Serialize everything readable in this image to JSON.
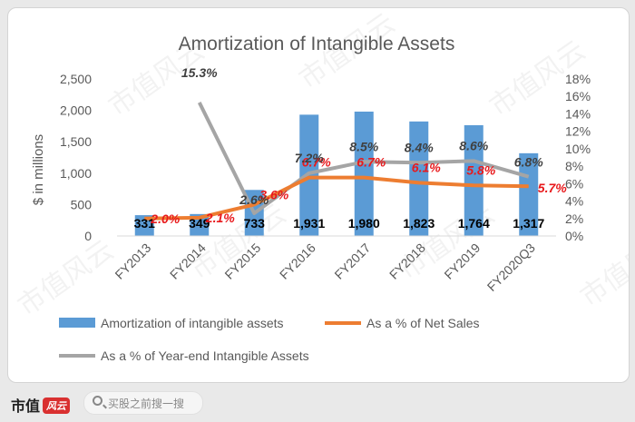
{
  "watermark": {
    "text": "市值风云"
  },
  "footer": {
    "brand": "市值",
    "brand_badge": "风云",
    "search_placeholder": "买股之前搜一搜"
  },
  "colors": {
    "bar": "#5b9bd5",
    "net_sales_line": "#ed7d31",
    "intangible_line": "#a5a5a5",
    "net_sales_label": "#e8191c",
    "axis_text": "#595959"
  },
  "chart_data": {
    "type": "bar",
    "title": "Amortization of Intangible Assets",
    "ylabel": "$ in millions",
    "categories": [
      "FY2013",
      "FY2014",
      "FY2015",
      "FY2016",
      "FY2017",
      "FY2018",
      "FY2019",
      "FY2020Q3"
    ],
    "ylim": [
      0,
      2500
    ],
    "yticks": [
      "0",
      "500",
      "1,000",
      "1,500",
      "2,000",
      "2,500"
    ],
    "y2lim": [
      0,
      18
    ],
    "y2ticks": [
      "0%",
      "2%",
      "4%",
      "6%",
      "8%",
      "10%",
      "12%",
      "14%",
      "16%",
      "18%"
    ],
    "series": [
      {
        "name": "Amortization of intangible assets",
        "kind": "bar",
        "axis": "left",
        "color": "#5b9bd5",
        "values": [
          331,
          349,
          733,
          1931,
          1980,
          1823,
          1764,
          1317
        ],
        "labels": [
          "331",
          "349",
          "733",
          "1,931",
          "1,980",
          "1,823",
          "1,764",
          "1,317"
        ]
      },
      {
        "name": "As a % of Net Sales",
        "kind": "line",
        "axis": "right",
        "color": "#ed7d31",
        "values": [
          2.0,
          2.1,
          3.6,
          6.7,
          6.7,
          6.1,
          5.8,
          5.7
        ],
        "labels": [
          "2.0%",
          "2.1%",
          "3.6%",
          "6.7%",
          "6.7%",
          "6.1%",
          "5.8%",
          "5.7%"
        ]
      },
      {
        "name": "As a % of Year-end Intangible Assets",
        "kind": "line",
        "axis": "right",
        "color": "#a5a5a5",
        "values": [
          null,
          15.3,
          2.6,
          7.2,
          8.5,
          8.4,
          8.6,
          6.8
        ],
        "labels": [
          null,
          "15.3%",
          "2.6%",
          "7.2%",
          "8.5%",
          "8.4%",
          "8.6%",
          "6.8%"
        ]
      }
    ],
    "grid": false,
    "legend_position": "bottom"
  }
}
